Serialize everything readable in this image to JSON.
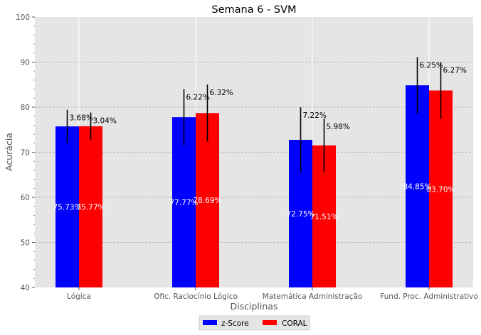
{
  "chart_data": {
    "type": "bar",
    "title": "Semana 6 - SVM",
    "xlabel": "Disciplinas",
    "ylabel": "Acurácia",
    "ylim": [
      40,
      100
    ],
    "yticks": [
      40,
      50,
      60,
      70,
      80,
      90,
      100
    ],
    "categories": [
      "Lógica",
      "Ofic. Raciocínio Lógico",
      "Matemática Administração",
      "Fund. Proc. Administrativo"
    ],
    "series": [
      {
        "name": "z-Score",
        "color": "#0000ff",
        "values": [
          75.73,
          77.77,
          72.75,
          84.85
        ],
        "errors": [
          3.68,
          6.22,
          7.22,
          6.25
        ],
        "value_labels": [
          "75.73%",
          "77.77%",
          "72.75%",
          "84.85%"
        ],
        "error_labels": [
          "3.68%",
          "6.22%",
          "7.22%",
          "6.25%"
        ]
      },
      {
        "name": "CORAL",
        "color": "#ff0000",
        "values": [
          75.77,
          78.69,
          71.51,
          83.7
        ],
        "errors": [
          3.04,
          6.32,
          5.98,
          6.27
        ],
        "value_labels": [
          "75.77%",
          "78.69%",
          "71.51%",
          "83.70%"
        ],
        "error_labels": [
          "3.04%",
          "6.32%",
          "5.98%",
          "6.27%"
        ]
      }
    ],
    "grid": true,
    "legend": "bottom-center"
  }
}
